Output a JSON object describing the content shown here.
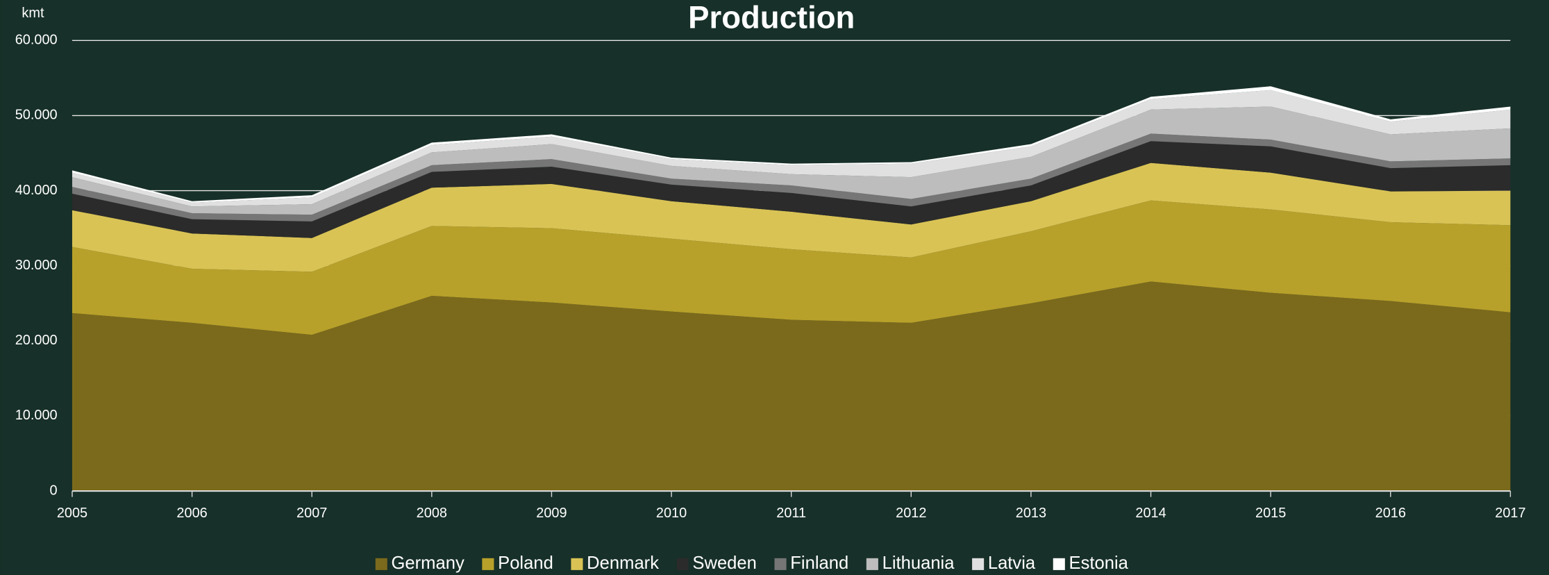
{
  "chart_data": {
    "type": "stacked_area",
    "title": "Production",
    "ylabel": "kmt",
    "x": [
      2005,
      2006,
      2007,
      2008,
      2009,
      2010,
      2011,
      2012,
      2013,
      2014,
      2015,
      2016,
      2017
    ],
    "xlim": [
      2005,
      2017
    ],
    "xticks": [
      2005,
      2006,
      2007,
      2008,
      2009,
      2010,
      2011,
      2012,
      2013,
      2014,
      2015,
      2016,
      2017
    ],
    "ylim": [
      0,
      60000
    ],
    "yticks": [
      0,
      {
        "value": 10000,
        "label": "10.000"
      },
      {
        "value": 20000,
        "label": "20.000"
      },
      {
        "value": 30000,
        "label": "30.000"
      },
      {
        "value": 40000,
        "label": "40.000"
      },
      {
        "value": 50000,
        "label": "50.000"
      },
      {
        "value": 60000,
        "label": "60.000"
      }
    ],
    "grid": true,
    "legend": "bottom",
    "series": [
      {
        "name": "Germany",
        "color": "#7b6a1c",
        "values": [
          23700,
          22400,
          20800,
          26000,
          25100,
          23900,
          22800,
          22400,
          25000,
          27900,
          26400,
          25300,
          23800
        ]
      },
      {
        "name": "Poland",
        "color": "#b8a12a",
        "values": [
          8800,
          7200,
          8400,
          9300,
          9900,
          9700,
          9400,
          8700,
          9600,
          10800,
          11100,
          10500,
          11600
        ]
      },
      {
        "name": "Denmark",
        "color": "#d9c355",
        "values": [
          4900,
          4700,
          4500,
          5100,
          5900,
          5000,
          5000,
          4400,
          4000,
          5000,
          4900,
          4100,
          4600
        ]
      },
      {
        "name": "Sweden",
        "color": "#2b2b2b",
        "values": [
          2200,
          1900,
          2200,
          2100,
          2300,
          2200,
          2500,
          2400,
          2100,
          2900,
          3500,
          3100,
          3400
        ]
      },
      {
        "name": "Finland",
        "color": "#767676",
        "values": [
          900,
          800,
          900,
          900,
          1000,
          800,
          1000,
          1000,
          900,
          1000,
          900,
          900,
          900
        ]
      },
      {
        "name": "Lithuania",
        "color": "#bdbdbd",
        "values": [
          1300,
          900,
          1400,
          1700,
          2000,
          1700,
          1500,
          2900,
          2900,
          3200,
          4400,
          3600,
          4000
        ]
      },
      {
        "name": "Latvia",
        "color": "#e0e0e0",
        "values": [
          600,
          500,
          900,
          1000,
          1000,
          900,
          1200,
          1800,
          1400,
          1400,
          2200,
          1700,
          2500
        ]
      },
      {
        "name": "Estonia",
        "color": "#ffffff",
        "values": [
          300,
          200,
          300,
          300,
          300,
          200,
          200,
          200,
          300,
          300,
          500,
          300,
          400
        ]
      }
    ]
  }
}
